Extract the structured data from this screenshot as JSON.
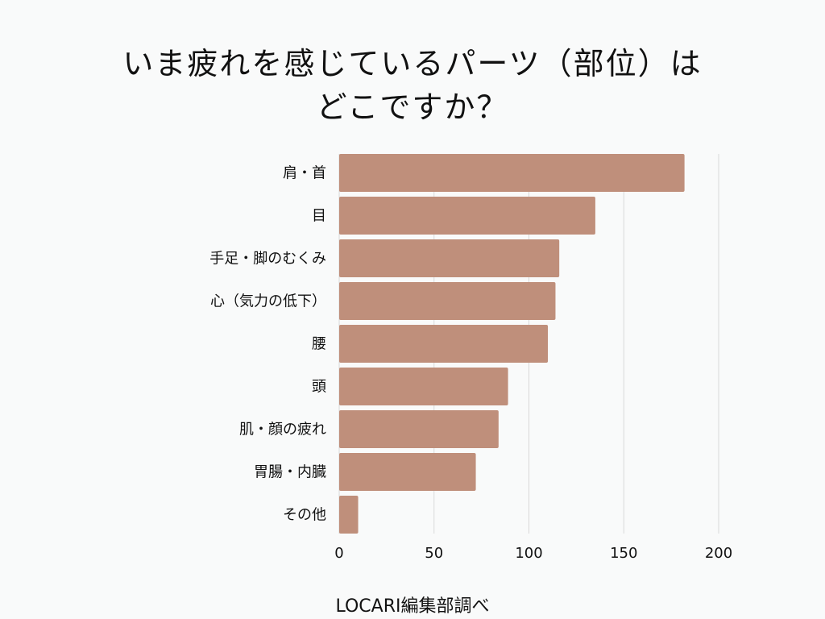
{
  "chart_data": {
    "type": "bar",
    "orientation": "horizontal",
    "title_lines": [
      "いま疲れを感じているパーツ（部位）は",
      "どこですか？"
    ],
    "categories": [
      "肩・首",
      "目",
      "手足・脚のむくみ",
      "心（気力の低下）",
      "腰",
      "頭",
      "肌・顔の疲れ",
      "胃腸・内臓",
      "その他"
    ],
    "values": [
      182,
      135,
      116,
      114,
      110,
      89,
      84,
      72,
      10
    ],
    "xlim": [
      0,
      200
    ],
    "xticks": [
      0,
      50,
      100,
      150,
      200
    ],
    "grid": true,
    "xlabel": "",
    "ylabel": ""
  },
  "colors": {
    "bar": "#bf8f7b",
    "grid": "#d9d9d9",
    "text": "#111111",
    "background": "#f9fafa"
  },
  "source": "LOCARI編集部調べ"
}
